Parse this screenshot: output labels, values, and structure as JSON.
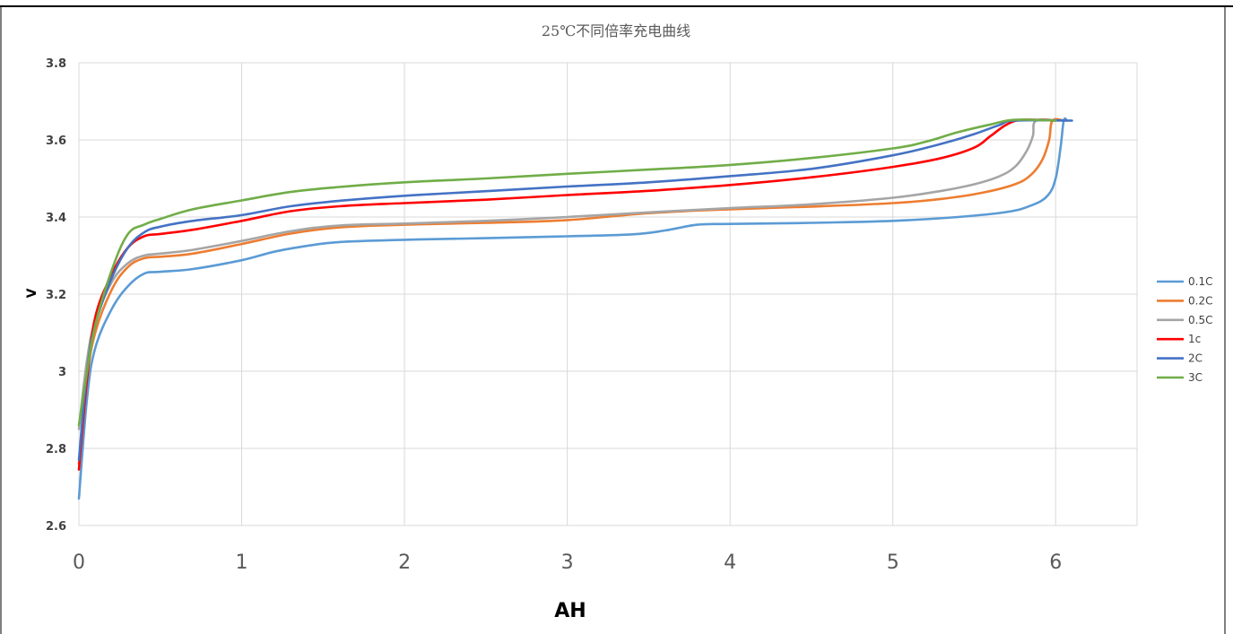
{
  "chart_data": {
    "type": "line",
    "title": "25℃不同倍率充电曲线",
    "xlabel": "AH",
    "ylabel": "V",
    "xlim": [
      0,
      6.5
    ],
    "ylim": [
      2.6,
      3.8
    ],
    "xticks": [
      "0",
      "1",
      "2",
      "3",
      "4",
      "5",
      "6"
    ],
    "yticks": [
      "2.6",
      "2.8",
      "3",
      "3.2",
      "3.4",
      "3.6",
      "3.8"
    ],
    "grid": true,
    "legend_position": "right",
    "series": [
      {
        "name": "0.1C",
        "color": "#5b9bd5",
        "points": [
          [
            0,
            2.67
          ],
          [
            0.05,
            2.93
          ],
          [
            0.1,
            3.06
          ],
          [
            0.2,
            3.16
          ],
          [
            0.3,
            3.22
          ],
          [
            0.4,
            3.253
          ],
          [
            0.5,
            3.258
          ],
          [
            0.7,
            3.265
          ],
          [
            1.0,
            3.288
          ],
          [
            1.2,
            3.31
          ],
          [
            1.4,
            3.325
          ],
          [
            1.6,
            3.335
          ],
          [
            2.0,
            3.341
          ],
          [
            2.5,
            3.345
          ],
          [
            3.0,
            3.35
          ],
          [
            3.4,
            3.355
          ],
          [
            3.6,
            3.365
          ],
          [
            3.8,
            3.38
          ],
          [
            4.0,
            3.382
          ],
          [
            4.5,
            3.385
          ],
          [
            5.0,
            3.39
          ],
          [
            5.4,
            3.4
          ],
          [
            5.7,
            3.413
          ],
          [
            5.85,
            3.43
          ],
          [
            5.95,
            3.455
          ],
          [
            6.0,
            3.5
          ],
          [
            6.03,
            3.58
          ],
          [
            6.05,
            3.65
          ],
          [
            6.07,
            3.65
          ]
        ]
      },
      {
        "name": "0.2C",
        "color": "#ed7d31",
        "points": [
          [
            0,
            2.76
          ],
          [
            0.05,
            2.98
          ],
          [
            0.1,
            3.1
          ],
          [
            0.2,
            3.21
          ],
          [
            0.3,
            3.27
          ],
          [
            0.4,
            3.293
          ],
          [
            0.5,
            3.297
          ],
          [
            0.7,
            3.305
          ],
          [
            1.0,
            3.33
          ],
          [
            1.3,
            3.357
          ],
          [
            1.6,
            3.373
          ],
          [
            2.0,
            3.38
          ],
          [
            2.5,
            3.385
          ],
          [
            3.0,
            3.392
          ],
          [
            3.5,
            3.41
          ],
          [
            4.0,
            3.42
          ],
          [
            4.5,
            3.427
          ],
          [
            5.0,
            3.436
          ],
          [
            5.3,
            3.447
          ],
          [
            5.55,
            3.463
          ],
          [
            5.75,
            3.485
          ],
          [
            5.85,
            3.51
          ],
          [
            5.92,
            3.55
          ],
          [
            5.96,
            3.6
          ],
          [
            5.98,
            3.65
          ],
          [
            6.05,
            3.65
          ]
        ]
      },
      {
        "name": "0.5C",
        "color": "#a5a5a5",
        "points": [
          [
            0,
            2.85
          ],
          [
            0.05,
            3.03
          ],
          [
            0.1,
            3.13
          ],
          [
            0.2,
            3.23
          ],
          [
            0.3,
            3.28
          ],
          [
            0.4,
            3.3
          ],
          [
            0.5,
            3.305
          ],
          [
            0.7,
            3.315
          ],
          [
            1.0,
            3.338
          ],
          [
            1.3,
            3.363
          ],
          [
            1.6,
            3.378
          ],
          [
            2.0,
            3.383
          ],
          [
            2.5,
            3.39
          ],
          [
            3.0,
            3.4
          ],
          [
            3.5,
            3.412
          ],
          [
            4.0,
            3.423
          ],
          [
            4.5,
            3.433
          ],
          [
            5.0,
            3.45
          ],
          [
            5.3,
            3.468
          ],
          [
            5.5,
            3.485
          ],
          [
            5.65,
            3.505
          ],
          [
            5.75,
            3.53
          ],
          [
            5.82,
            3.57
          ],
          [
            5.86,
            3.61
          ],
          [
            5.88,
            3.65
          ],
          [
            6.02,
            3.65
          ]
        ]
      },
      {
        "name": "1c",
        "color": "#ff0000",
        "points": [
          [
            0,
            2.745
          ],
          [
            0.05,
            2.98
          ],
          [
            0.1,
            3.14
          ],
          [
            0.2,
            3.25
          ],
          [
            0.3,
            3.32
          ],
          [
            0.4,
            3.35
          ],
          [
            0.5,
            3.356
          ],
          [
            0.7,
            3.367
          ],
          [
            1.0,
            3.39
          ],
          [
            1.3,
            3.415
          ],
          [
            1.6,
            3.428
          ],
          [
            2.0,
            3.436
          ],
          [
            2.5,
            3.445
          ],
          [
            3.0,
            3.457
          ],
          [
            3.5,
            3.468
          ],
          [
            4.0,
            3.483
          ],
          [
            4.5,
            3.503
          ],
          [
            5.0,
            3.53
          ],
          [
            5.3,
            3.553
          ],
          [
            5.5,
            3.58
          ],
          [
            5.6,
            3.61
          ],
          [
            5.7,
            3.64
          ],
          [
            5.8,
            3.652
          ],
          [
            6.0,
            3.65
          ]
        ]
      },
      {
        "name": "2C",
        "color": "#4472c4",
        "points": [
          [
            0,
            2.77
          ],
          [
            0.05,
            3.0
          ],
          [
            0.1,
            3.12
          ],
          [
            0.2,
            3.24
          ],
          [
            0.3,
            3.32
          ],
          [
            0.4,
            3.36
          ],
          [
            0.5,
            3.375
          ],
          [
            0.7,
            3.39
          ],
          [
            1.0,
            3.405
          ],
          [
            1.3,
            3.428
          ],
          [
            1.6,
            3.442
          ],
          [
            2.0,
            3.455
          ],
          [
            2.5,
            3.467
          ],
          [
            3.0,
            3.479
          ],
          [
            3.5,
            3.49
          ],
          [
            4.0,
            3.506
          ],
          [
            4.5,
            3.525
          ],
          [
            5.0,
            3.56
          ],
          [
            5.3,
            3.59
          ],
          [
            5.5,
            3.615
          ],
          [
            5.65,
            3.638
          ],
          [
            5.75,
            3.65
          ],
          [
            6.1,
            3.65
          ]
        ]
      },
      {
        "name": "3C",
        "color": "#70ad47",
        "points": [
          [
            0,
            2.86
          ],
          [
            0.05,
            3.0
          ],
          [
            0.1,
            3.12
          ],
          [
            0.2,
            3.26
          ],
          [
            0.3,
            3.355
          ],
          [
            0.4,
            3.38
          ],
          [
            0.5,
            3.395
          ],
          [
            0.7,
            3.42
          ],
          [
            1.0,
            3.443
          ],
          [
            1.3,
            3.465
          ],
          [
            1.6,
            3.478
          ],
          [
            2.0,
            3.49
          ],
          [
            2.5,
            3.5
          ],
          [
            3.0,
            3.512
          ],
          [
            3.5,
            3.523
          ],
          [
            4.0,
            3.535
          ],
          [
            4.5,
            3.553
          ],
          [
            5.0,
            3.578
          ],
          [
            5.2,
            3.595
          ],
          [
            5.4,
            3.62
          ],
          [
            5.6,
            3.64
          ],
          [
            5.75,
            3.652
          ],
          [
            6.0,
            3.65
          ]
        ]
      }
    ]
  }
}
